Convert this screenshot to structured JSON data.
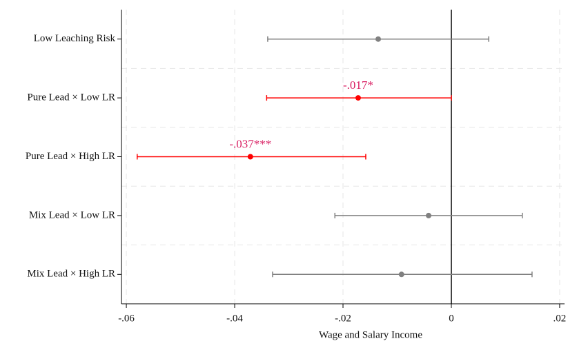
{
  "chart_data": {
    "type": "coefplot",
    "xlabel": "Wage and Salary Income",
    "categories": [
      "Low Leaching Risk",
      "Pure Lead × Low LR",
      "Pure Lead × High LR",
      "Mix Lead × Low LR",
      "Mix Lead × High LR"
    ],
    "values": [
      -0.0135,
      -0.0172,
      -0.0371,
      -0.0042,
      -0.0092
    ],
    "lower": [
      -0.0339,
      -0.0341,
      -0.058,
      -0.0215,
      -0.033
    ],
    "upper": [
      0.0069,
      0.0,
      -0.0158,
      0.0131,
      0.0149
    ],
    "value_labels": [
      null,
      "-.017*",
      "-.037***",
      null,
      null
    ],
    "colors": [
      "#808080",
      "#ff0000",
      "#ff0000",
      "#808080",
      "#808080"
    ],
    "label_color": "#d81b60",
    "xlim": [
      -0.0609,
      0.0209
    ],
    "xticks": [
      {
        "value": -0.06,
        "label": "-.06"
      },
      {
        "value": -0.04,
        "label": "-.04"
      },
      {
        "value": -0.02,
        "label": "-.02"
      },
      0,
      {
        "value": 0.02,
        "label": ".02"
      }
    ],
    "xline": 0,
    "grid": true
  }
}
